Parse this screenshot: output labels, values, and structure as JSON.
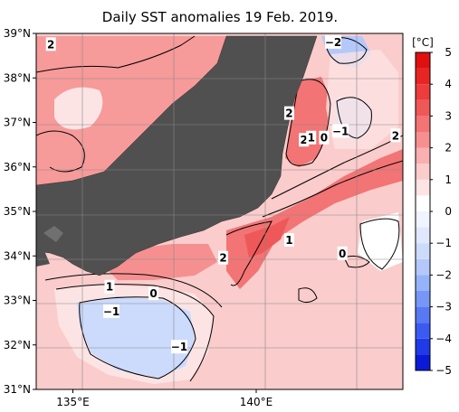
{
  "chart_data": {
    "type": "heatmap",
    "title": "Daily SST anomalies 19 Feb. 2019.",
    "x_axis": {
      "ticks": [
        {
          "value": 135,
          "label": "135°E"
        },
        {
          "value": 140,
          "label": "140°E"
        }
      ],
      "range": [
        134,
        144
      ]
    },
    "y_axis": {
      "ticks": [
        {
          "value": 39,
          "label": "39°N"
        },
        {
          "value": 38,
          "label": "38°N"
        },
        {
          "value": 37,
          "label": "37°N"
        },
        {
          "value": 36,
          "label": "36°N"
        },
        {
          "value": 35,
          "label": "35°N"
        },
        {
          "value": 34,
          "label": "34°N"
        },
        {
          "value": 33,
          "label": "33°N"
        },
        {
          "value": 32,
          "label": "32°N"
        },
        {
          "value": 31,
          "label": "31°N"
        }
      ],
      "range": [
        31,
        39
      ]
    },
    "colorbar": {
      "unit": "[°C]",
      "range": [
        -5,
        5
      ],
      "step": 0.5,
      "labels": [
        "5",
        "4",
        "3",
        "2",
        "1",
        "0",
        "−1",
        "−2",
        "−3",
        "−4",
        "−5"
      ],
      "colors": [
        "#0a1ad6",
        "#1f3ae6",
        "#3a5af0",
        "#5878f4",
        "#7896f6",
        "#96b2f8",
        "#b4c8fa",
        "#ccdafc",
        "#e0e8fd",
        "#f0f4fe",
        "#ffffff",
        "#fde4e4",
        "#fbcccc",
        "#f8b0b0",
        "#f69090",
        "#f27474",
        "#ef5858",
        "#ec3c3c",
        "#e82424",
        "#e01010"
      ]
    },
    "contour_labels": [
      {
        "text": "2",
        "lon": 134.4,
        "lat": 38.75
      },
      {
        "text": "−2",
        "lon": 142.1,
        "lat": 38.8
      },
      {
        "text": "2",
        "lon": 140.9,
        "lat": 37.2
      },
      {
        "text": "2",
        "lon": 141.3,
        "lat": 36.6
      },
      {
        "text": "1",
        "lon": 141.5,
        "lat": 36.65
      },
      {
        "text": "0",
        "lon": 141.85,
        "lat": 36.65
      },
      {
        "text": "−1",
        "lon": 142.3,
        "lat": 36.8
      },
      {
        "text": "2",
        "lon": 143.8,
        "lat": 36.7
      },
      {
        "text": "1",
        "lon": 140.9,
        "lat": 34.35
      },
      {
        "text": "2",
        "lon": 139.1,
        "lat": 33.95
      },
      {
        "text": "0",
        "lon": 142.35,
        "lat": 34.05
      },
      {
        "text": "1",
        "lon": 136.0,
        "lat": 33.3
      },
      {
        "text": "0",
        "lon": 137.2,
        "lat": 33.15
      },
      {
        "text": "−1",
        "lon": 136.05,
        "lat": 32.75
      },
      {
        "text": "−1",
        "lon": 137.9,
        "lat": 31.95
      }
    ]
  }
}
